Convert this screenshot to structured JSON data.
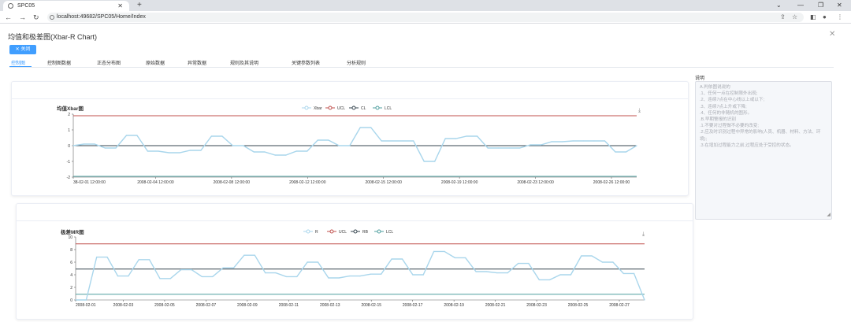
{
  "browser": {
    "tab_title": "SPC05",
    "url": "localhost:49682/SPC05/Home/Index"
  },
  "dialog": {
    "title": "均值和极差图(Xbar-R Chart)",
    "close_button": "关闭"
  },
  "tabs": [
    {
      "label": "控制图",
      "active": true
    },
    {
      "label": "控制图数据",
      "active": false
    },
    {
      "label": "正态分布图",
      "active": false
    },
    {
      "label": "原始数据",
      "active": false
    },
    {
      "label": "异常数据",
      "active": false
    },
    {
      "label": "规则及其说明",
      "active": false
    },
    {
      "label": "关键参数列表",
      "active": false
    },
    {
      "label": "分析规则",
      "active": false
    }
  ],
  "side": {
    "label": "说明",
    "lines": [
      "A.判依图说说的",
      ".1、任何一点在控制限外出现;",
      ".2、连续7点在中心线以上或以下;",
      ".3、连续7点上升或下降;",
      ".4、任何的非随机的图形。",
      ".B.早期警报的识别",
      ".1.不要对过程做不必要的改变;",
      ".2.应及时识别过程中异常的影响(人员、机器、材料、方法、环境);",
      ".3.在增加过程能力之前,过程应处于受控的状态。"
    ]
  },
  "colors": {
    "accent": "#409eff",
    "data_line": "#a9d6ec",
    "ucl": "#c0504d",
    "cl": "#36454f",
    "lcl": "#4f9f9f"
  },
  "chart_data": [
    {
      "type": "line",
      "title": "均值Xbar图",
      "legend": [
        "Xbar",
        "UCL",
        "CL",
        "LCL"
      ],
      "ylim": [
        -2,
        2
      ],
      "yticks": [
        -2,
        -1,
        0,
        1,
        2
      ],
      "xtick_labels": [
        "38-02-01 12:00:00",
        "2008-02-04 12:00:00",
        "2008-02-08 12:00:00",
        "2008-02-12 12:00:00",
        "2008-02-15 12:00:00",
        "2008-02-19 12:00:00",
        "2008-02-23 12:00:00",
        "2008-02-26 12:00:00"
      ],
      "ucl": 1.9,
      "cl": 0,
      "lcl": -1.95,
      "values": [
        0,
        0.1,
        0.1,
        -0.15,
        -0.15,
        0.65,
        0.65,
        -0.35,
        -0.35,
        -0.45,
        -0.45,
        -0.3,
        -0.3,
        0.6,
        0.6,
        0,
        0,
        -0.4,
        -0.4,
        -0.6,
        -0.6,
        -0.35,
        -0.35,
        0.35,
        0.35,
        0,
        0,
        1.15,
        1.15,
        0.3,
        0.3,
        0.3,
        0.3,
        -1,
        -1,
        0.45,
        0.45,
        0.6,
        0.6,
        -0.15,
        -0.15,
        -0.15,
        -0.15,
        0.05,
        0.05,
        0.25,
        0.25,
        0.3,
        0.3,
        0.3,
        0.3,
        -0.4,
        -0.4,
        0
      ]
    },
    {
      "type": "line",
      "title": "极差MR图",
      "legend": [
        "R",
        "UCL",
        "RB",
        "LCL"
      ],
      "ylim": [
        0,
        10
      ],
      "yticks": [
        0,
        2,
        4,
        6,
        8,
        10
      ],
      "xtick_labels": [
        "2008-02-01",
        "2008-02-03",
        "2008-02-05",
        "2008-02-07",
        "2008-02-09",
        "2008-02-11",
        "2008-02-13",
        "2008-02-15",
        "2008-02-17",
        "2008-02-19",
        "2008-02-21",
        "2008-02-23",
        "2008-02-25",
        "2008-02-27"
      ],
      "ucl": 8.9,
      "cl": 4.9,
      "lcl": 0.9,
      "values": [
        0,
        0,
        6.8,
        6.8,
        3.8,
        3.8,
        6.4,
        6.4,
        3.4,
        3.4,
        4.8,
        4.8,
        3.7,
        3.7,
        5.1,
        5.1,
        7.1,
        7.1,
        4.3,
        4.3,
        3.7,
        3.7,
        6,
        6,
        3.5,
        3.5,
        3.8,
        3.8,
        4.1,
        4.1,
        6.5,
        6.5,
        4,
        4,
        7.7,
        7.7,
        6.7,
        6.7,
        4.5,
        4.5,
        4.3,
        4.3,
        5.8,
        5.8,
        3.2,
        3.2,
        4,
        4,
        7,
        7,
        6,
        6,
        4.2,
        4.2,
        0
      ]
    }
  ]
}
